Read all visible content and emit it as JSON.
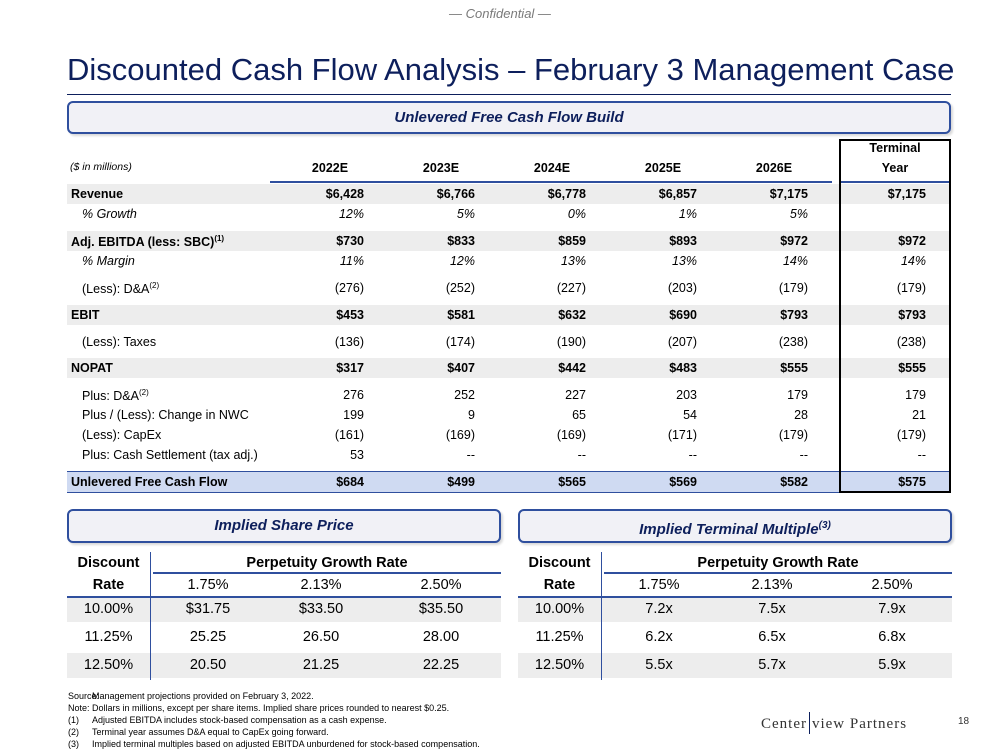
{
  "confidential": "— Confidential —",
  "title": "Discounted Cash Flow Analysis – February 3 Management Case",
  "ufcf_banner": "Unlevered Free Cash Flow Build",
  "table": {
    "units": "($ in millions)",
    "terminal_header_1": "Terminal",
    "terminal_header_2": "Year",
    "years": [
      "2022E",
      "2023E",
      "2024E",
      "2025E",
      "2026E"
    ],
    "rows": [
      {
        "label": "Revenue",
        "values": [
          "$6,428",
          "$6,766",
          "$6,778",
          "$6,857",
          "$7,175"
        ],
        "terminal": "$7,175"
      },
      {
        "label": "% Growth",
        "values": [
          "12%",
          "5%",
          "0%",
          "1%",
          "5%"
        ],
        "terminal": ""
      },
      {
        "label": "Adj. EBITDA (less: SBC)",
        "note": "(1)",
        "values": [
          "$730",
          "$833",
          "$859",
          "$893",
          "$972"
        ],
        "terminal": "$972"
      },
      {
        "label": "% Margin",
        "values": [
          "11%",
          "12%",
          "13%",
          "13%",
          "14%"
        ],
        "terminal": "14%"
      },
      {
        "label": "(Less): D&A",
        "note": "(2)",
        "values": [
          "(276)",
          "(252)",
          "(227)",
          "(203)",
          "(179)"
        ],
        "terminal": "(179)"
      },
      {
        "label": "EBIT",
        "values": [
          "$453",
          "$581",
          "$632",
          "$690",
          "$793"
        ],
        "terminal": "$793"
      },
      {
        "label": "(Less): Taxes",
        "values": [
          "(136)",
          "(174)",
          "(190)",
          "(207)",
          "(238)"
        ],
        "terminal": "(238)"
      },
      {
        "label": "NOPAT",
        "values": [
          "$317",
          "$407",
          "$442",
          "$483",
          "$555"
        ],
        "terminal": "$555"
      },
      {
        "label": "Plus: D&A",
        "note": "(2)",
        "values": [
          "276",
          "252",
          "227",
          "203",
          "179"
        ],
        "terminal": "179"
      },
      {
        "label": "Plus / (Less): Change in NWC",
        "values": [
          "199",
          "9",
          "65",
          "54",
          "28"
        ],
        "terminal": "21"
      },
      {
        "label": "(Less): CapEx",
        "values": [
          "(161)",
          "(169)",
          "(169)",
          "(171)",
          "(179)"
        ],
        "terminal": "(179)"
      },
      {
        "label": "Plus: Cash Settlement (tax adj.)",
        "values": [
          "53",
          "--",
          "--",
          "--",
          "--"
        ],
        "terminal": "--"
      },
      {
        "label": "Unlevered Free Cash Flow",
        "values": [
          "$684",
          "$499",
          "$565",
          "$569",
          "$582"
        ],
        "terminal": "$575"
      }
    ]
  },
  "share_price": {
    "banner": "Implied Share Price",
    "col_head_1": "Discount",
    "col_head_2": "Rate",
    "group_head": "Perpetuity Growth Rate",
    "growth_rates": [
      "1.75%",
      "2.13%",
      "2.50%"
    ],
    "rows": [
      {
        "rate": "10.00%",
        "values": [
          "$31.75",
          "$33.50",
          "$35.50"
        ]
      },
      {
        "rate": "11.25%",
        "values": [
          "25.25",
          "26.50",
          "28.00"
        ]
      },
      {
        "rate": "12.50%",
        "values": [
          "20.50",
          "21.25",
          "22.25"
        ]
      }
    ]
  },
  "terminal_multiple": {
    "banner": "Implied Terminal Multiple",
    "banner_note": "(3)",
    "col_head_1": "Discount",
    "col_head_2": "Rate",
    "group_head": "Perpetuity Growth Rate",
    "growth_rates": [
      "1.75%",
      "2.13%",
      "2.50%"
    ],
    "rows": [
      {
        "rate": "10.00%",
        "values": [
          "7.2x",
          "7.5x",
          "7.9x"
        ]
      },
      {
        "rate": "11.25%",
        "values": [
          "6.2x",
          "6.5x",
          "6.8x"
        ]
      },
      {
        "rate": "12.50%",
        "values": [
          "5.5x",
          "5.7x",
          "5.9x"
        ]
      }
    ]
  },
  "footnotes": [
    {
      "key": "Source:",
      "text": "Management projections provided on February 3, 2022."
    },
    {
      "key": "Note:",
      "text": "Dollars in millions, except per share items. Implied share prices rounded to nearest $0.25."
    },
    {
      "key": "(1)",
      "text": "Adjusted EBITDA includes stock-based compensation as a cash expense."
    },
    {
      "key": "(2)",
      "text": "Terminal year assumes D&A equal to CapEx going forward."
    },
    {
      "key": "(3)",
      "text": "Implied terminal multiples based on adjusted EBITDA unburdened for stock-based compensation."
    }
  ],
  "logo_left": "Center",
  "logo_right": "view Partners",
  "page_number": "18"
}
